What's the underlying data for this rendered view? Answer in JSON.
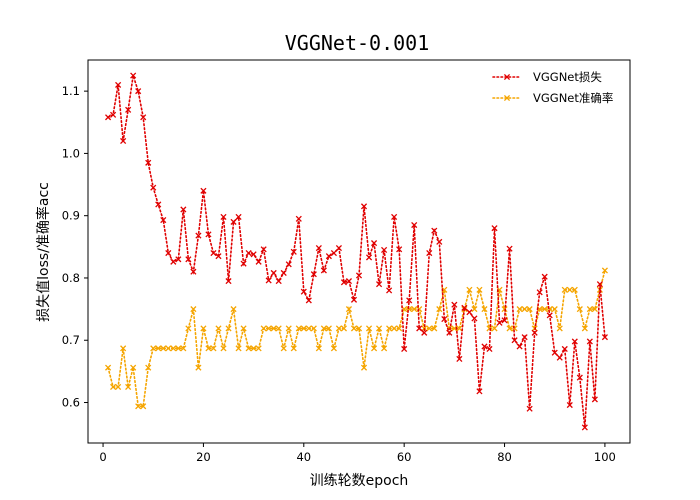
{
  "chart_data": {
    "type": "line",
    "title": "VGGNet-0.001",
    "xlabel": "训练轮数epoch",
    "ylabel": "损失值loss/准确率acc",
    "xlim": [
      -3,
      105
    ],
    "ylim": [
      0.535,
      1.15
    ],
    "xticks": [
      0,
      20,
      40,
      60,
      80,
      100
    ],
    "yticks": [
      0.6,
      0.7,
      0.8,
      0.9,
      1.0,
      1.1
    ],
    "ytick_labels": [
      "0.6",
      "0.7",
      "0.8",
      "0.9",
      "1.0",
      "1.1"
    ],
    "grid": false,
    "legend_position": "top-right",
    "x": [
      1,
      2,
      3,
      4,
      5,
      6,
      7,
      8,
      9,
      10,
      11,
      12,
      13,
      14,
      15,
      16,
      17,
      18,
      19,
      20,
      21,
      22,
      23,
      24,
      25,
      26,
      27,
      28,
      29,
      30,
      31,
      32,
      33,
      34,
      35,
      36,
      37,
      38,
      39,
      40,
      41,
      42,
      43,
      44,
      45,
      46,
      47,
      48,
      49,
      50,
      51,
      52,
      53,
      54,
      55,
      56,
      57,
      58,
      59,
      60,
      61,
      62,
      63,
      64,
      65,
      66,
      67,
      68,
      69,
      70,
      71,
      72,
      73,
      74,
      75,
      76,
      77,
      78,
      79,
      80,
      81,
      82,
      83,
      84,
      85,
      86,
      87,
      88,
      89,
      90,
      91,
      92,
      93,
      94,
      95,
      96,
      97,
      98,
      99,
      100
    ],
    "series": [
      {
        "name": "VGGNet损失",
        "color": "#e00000",
        "values": [
          1.058,
          1.062,
          1.11,
          1.02,
          1.07,
          1.125,
          1.1,
          1.058,
          0.985,
          0.945,
          0.918,
          0.893,
          0.84,
          0.826,
          0.83,
          0.91,
          0.83,
          0.81,
          0.868,
          0.94,
          0.87,
          0.84,
          0.835,
          0.898,
          0.795,
          0.89,
          0.898,
          0.823,
          0.84,
          0.838,
          0.826,
          0.846,
          0.796,
          0.808,
          0.795,
          0.808,
          0.822,
          0.842,
          0.895,
          0.778,
          0.764,
          0.806,
          0.848,
          0.812,
          0.835,
          0.84,
          0.848,
          0.793,
          0.795,
          0.765,
          0.804,
          0.915,
          0.833,
          0.856,
          0.79,
          0.845,
          0.78,
          0.898,
          0.846,
          0.686,
          0.764,
          0.885,
          0.719,
          0.712,
          0.84,
          0.876,
          0.858,
          0.734,
          0.712,
          0.757,
          0.67,
          0.752,
          0.745,
          0.735,
          0.618,
          0.69,
          0.686,
          0.88,
          0.728,
          0.732,
          0.847,
          0.7,
          0.69,
          0.705,
          0.59,
          0.712,
          0.777,
          0.802,
          0.74,
          0.68,
          0.672,
          0.686,
          0.596,
          0.698,
          0.64,
          0.56,
          0.698,
          0.605,
          0.79,
          0.705
        ]
      },
      {
        "name": "VGGNet准确率",
        "color": "#f5a500",
        "values": [
          0.656,
          0.625,
          0.625,
          0.687,
          0.625,
          0.656,
          0.594,
          0.594,
          0.656,
          0.687,
          0.687,
          0.687,
          0.687,
          0.687,
          0.687,
          0.687,
          0.719,
          0.75,
          0.656,
          0.719,
          0.687,
          0.687,
          0.719,
          0.687,
          0.719,
          0.75,
          0.687,
          0.719,
          0.687,
          0.687,
          0.687,
          0.719,
          0.719,
          0.719,
          0.719,
          0.687,
          0.719,
          0.687,
          0.719,
          0.719,
          0.719,
          0.719,
          0.687,
          0.719,
          0.719,
          0.687,
          0.719,
          0.719,
          0.75,
          0.719,
          0.719,
          0.656,
          0.719,
          0.687,
          0.719,
          0.687,
          0.719,
          0.719,
          0.719,
          0.75,
          0.75,
          0.75,
          0.75,
          0.719,
          0.719,
          0.719,
          0.75,
          0.781,
          0.719,
          0.719,
          0.719,
          0.75,
          0.781,
          0.75,
          0.781,
          0.75,
          0.719,
          0.719,
          0.781,
          0.75,
          0.719,
          0.719,
          0.75,
          0.75,
          0.75,
          0.719,
          0.75,
          0.75,
          0.75,
          0.75,
          0.719,
          0.781,
          0.781,
          0.781,
          0.75,
          0.719,
          0.75,
          0.75,
          0.781,
          0.812
        ]
      }
    ]
  }
}
